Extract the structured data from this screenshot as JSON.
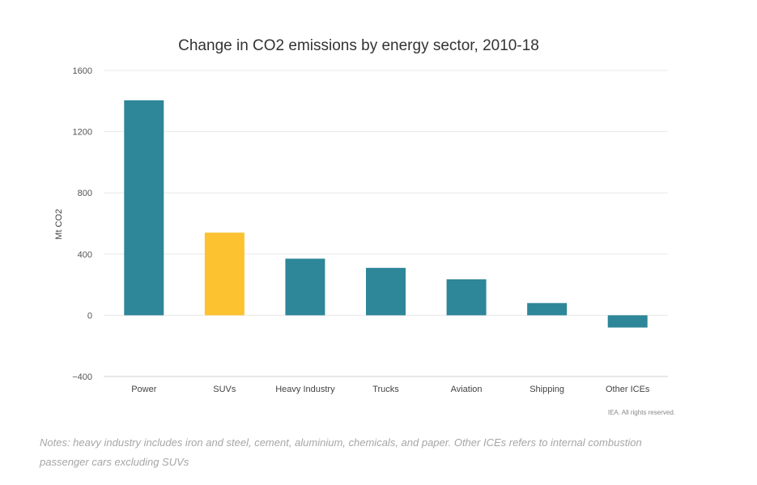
{
  "chart_data": {
    "type": "bar",
    "title": "Change in CO2 emissions by energy sector, 2010-18",
    "ylabel": "Mt CO2",
    "xlabel": "",
    "ylim": [
      -400,
      1600
    ],
    "yticks": [
      -400,
      0,
      400,
      800,
      1200,
      1600
    ],
    "ytick_labels": [
      "−400",
      "0",
      "400",
      "800",
      "1200",
      "1600"
    ],
    "grid": true,
    "categories": [
      "Power",
      "SUVs",
      "Heavy Industry",
      "Trucks",
      "Aviation",
      "Shipping",
      "Other ICEs"
    ],
    "values": [
      1405,
      540,
      370,
      310,
      235,
      80,
      -80
    ],
    "colors": [
      "#2e8699",
      "#fcc22f",
      "#2e8699",
      "#2e8699",
      "#2e8699",
      "#2e8699",
      "#2e8699"
    ]
  },
  "credit": "IEA. All rights reserved.",
  "notes": "Notes: heavy industry includes iron and steel, cement, aluminium, chemicals, and paper. Other ICEs refers to internal combustion passenger cars excluding SUVs"
}
